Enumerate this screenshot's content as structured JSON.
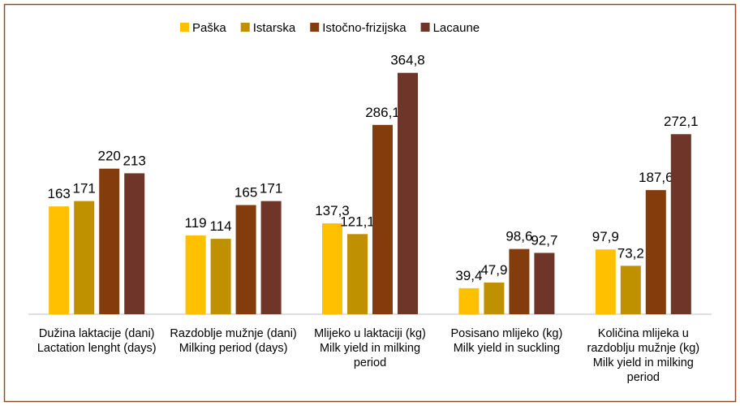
{
  "chart_data": {
    "type": "bar",
    "categories": [
      "Dužina laktacije (dani) Lactation lenght (days)",
      "Razdoblje mužnje (dani) Milking period (days)",
      "Mlijeko u laktaciji (kg) Milk yield in milking period",
      "Posisano mlijeko (kg) Milk yield in suckling",
      "Količina mlijeka u razdoblju mužnje (kg) Milk yield in milking period"
    ],
    "series": [
      {
        "name": "Paška",
        "color": "#ffc000",
        "values": [
          163,
          119,
          137.3,
          39.4,
          97.9
        ],
        "value_labels": [
          "163",
          "119",
          "137,3",
          "39,4",
          "97,9"
        ]
      },
      {
        "name": "Istarska",
        "color": "#bf9000",
        "values": [
          171,
          114,
          121.1,
          47.9,
          73.2
        ],
        "value_labels": [
          "171",
          "114",
          "121,1",
          "47,9",
          "73,2"
        ]
      },
      {
        "name": "Istočno-frizijska",
        "color": "#843c0c",
        "values": [
          220,
          165,
          286.1,
          98.6,
          187.6
        ],
        "value_labels": [
          "220",
          "165",
          "286,1",
          "98,6",
          "187,6"
        ]
      },
      {
        "name": "Lacaune",
        "color": "#6e3528",
        "values": [
          213,
          171,
          364.8,
          92.7,
          272.1
        ],
        "value_labels": [
          "213",
          "171",
          "364,8",
          "92,7",
          "272,1"
        ]
      }
    ],
    "ylim": [
      0,
      400
    ],
    "legend": "top"
  }
}
